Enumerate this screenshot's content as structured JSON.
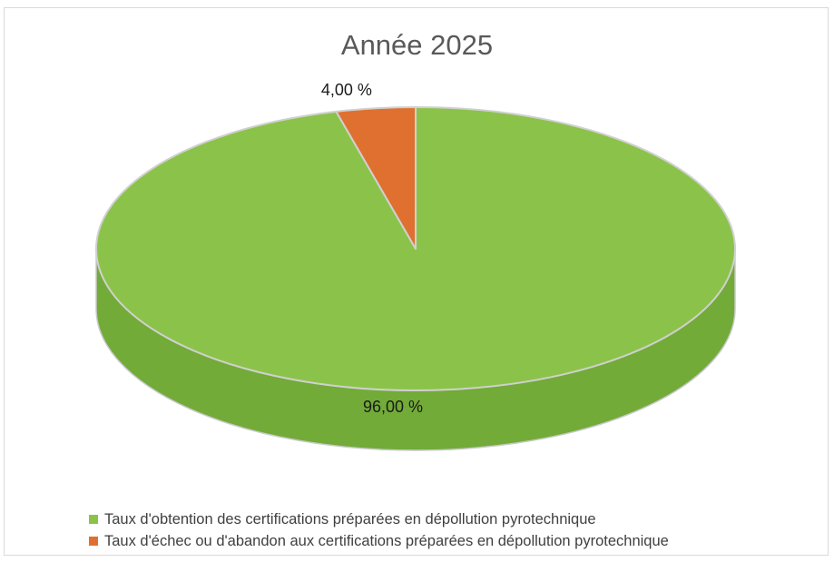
{
  "chart_data": {
    "type": "pie",
    "title": "Année 2025",
    "slices": [
      {
        "name": "Taux d'obtention des certifications préparées en dépollution pyrotechnique",
        "value": 96.0,
        "label": "96,00 %",
        "color": "#8BC34A",
        "side_color": "#72AB38"
      },
      {
        "name": "Taux d'échec ou d'abandon aux certifications préparées en dépollution pyrotechnique",
        "value": 4.0,
        "label": "4,00 %",
        "color": "#E07030",
        "side_color": "#B85A24"
      }
    ],
    "legend_position": "bottom-left",
    "style": "3d-pie"
  }
}
